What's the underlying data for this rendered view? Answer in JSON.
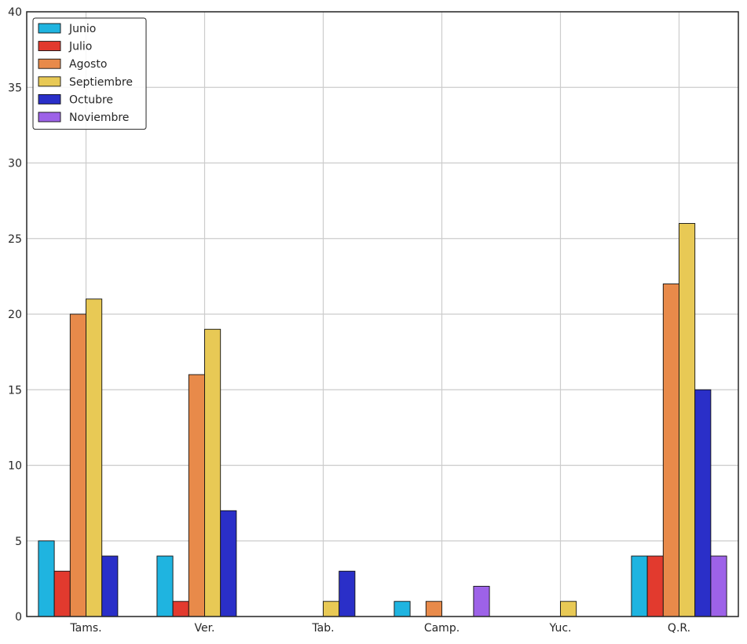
{
  "chart_data": {
    "type": "bar",
    "title": "",
    "xlabel": "",
    "ylabel": "",
    "categories": [
      "Tams.",
      "Ver.",
      "Tab.",
      "Camp.",
      "Yuc.",
      "Q.R."
    ],
    "ylim": [
      0,
      40
    ],
    "yticks": [
      0,
      5,
      10,
      15,
      20,
      25,
      30,
      35,
      40
    ],
    "grid": true,
    "legend_position": "top-left",
    "series": [
      {
        "name": "Junio",
        "color": "#1fb4e0",
        "values": [
          5,
          4,
          0,
          1,
          0,
          4
        ]
      },
      {
        "name": "Julio",
        "color": "#e23a2e",
        "values": [
          3,
          1,
          0,
          0,
          0,
          4
        ]
      },
      {
        "name": "Agosto",
        "color": "#e88a4a",
        "values": [
          20,
          16,
          0,
          1,
          0,
          22
        ]
      },
      {
        "name": "Septiembre",
        "color": "#e8c955",
        "values": [
          21,
          19,
          1,
          0,
          1,
          26
        ]
      },
      {
        "name": "Octubre",
        "color": "#2a2fc8",
        "values": [
          4,
          7,
          3,
          0,
          0,
          15
        ]
      },
      {
        "name": "Noviembre",
        "color": "#9d62e8",
        "values": [
          0,
          0,
          0,
          2,
          0,
          4
        ]
      }
    ]
  }
}
